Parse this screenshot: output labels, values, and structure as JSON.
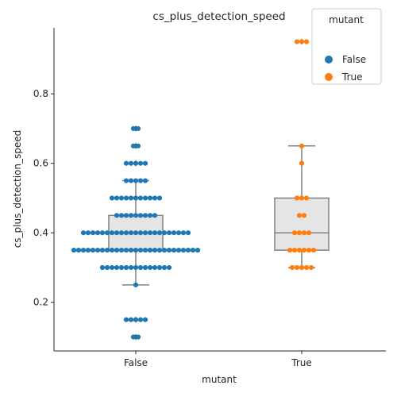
{
  "chart_data": {
    "type": "box+swarm",
    "title": "cs_plus_detection_speed",
    "xlabel": "mutant",
    "ylabel": "cs_plus_detection_speed",
    "categories": [
      "False",
      "True"
    ],
    "ylim": [
      0.06,
      0.99
    ],
    "yticks": [
      0.2,
      0.4,
      0.6,
      0.8
    ],
    "ytick_labels": [
      "0.2",
      "0.4",
      "0.6",
      "0.8"
    ],
    "grid": false,
    "legend": {
      "title": "mutant",
      "placement": "top-right",
      "entries": [
        {
          "label": "False",
          "color": "#1f77b4"
        },
        {
          "label": "True",
          "color": "#ff7f0e"
        }
      ]
    },
    "boxes": [
      {
        "category": "False",
        "whisker_low": 0.25,
        "q1": 0.35,
        "median": 0.35,
        "q3": 0.45,
        "whisker_high": 0.55,
        "outliers": [
          0.1,
          0.15,
          0.6,
          0.65,
          0.7
        ]
      },
      {
        "category": "True",
        "whisker_low": 0.3,
        "q1": 0.35,
        "median": 0.4,
        "q3": 0.5,
        "whisker_high": 0.65,
        "outliers": [
          0.95
        ]
      }
    ],
    "series": [
      {
        "name": "False",
        "color": "#1f77b4",
        "points": [
          {
            "y": 0.1,
            "count": 2
          },
          {
            "y": 0.15,
            "count": 5
          },
          {
            "y": 0.25,
            "count": 1
          },
          {
            "y": 0.3,
            "count": 15
          },
          {
            "y": 0.35,
            "count": 27
          },
          {
            "y": 0.4,
            "count": 23
          },
          {
            "y": 0.45,
            "count": 9
          },
          {
            "y": 0.5,
            "count": 11
          },
          {
            "y": 0.55,
            "count": 5
          },
          {
            "y": 0.6,
            "count": 5
          },
          {
            "y": 0.65,
            "count": 2
          },
          {
            "y": 0.7,
            "count": 2
          }
        ]
      },
      {
        "name": "True",
        "color": "#ff7f0e",
        "points": [
          {
            "y": 0.3,
            "count": 5
          },
          {
            "y": 0.35,
            "count": 6
          },
          {
            "y": 0.4,
            "count": 4
          },
          {
            "y": 0.45,
            "count": 2
          },
          {
            "y": 0.5,
            "count": 3
          },
          {
            "y": 0.6,
            "count": 1
          },
          {
            "y": 0.65,
            "count": 1
          },
          {
            "y": 0.95,
            "count": 3
          }
        ]
      }
    ]
  },
  "colors": {
    "box_fill": "#e5e5e5",
    "box_line": "#808080",
    "axis": "#262626"
  }
}
